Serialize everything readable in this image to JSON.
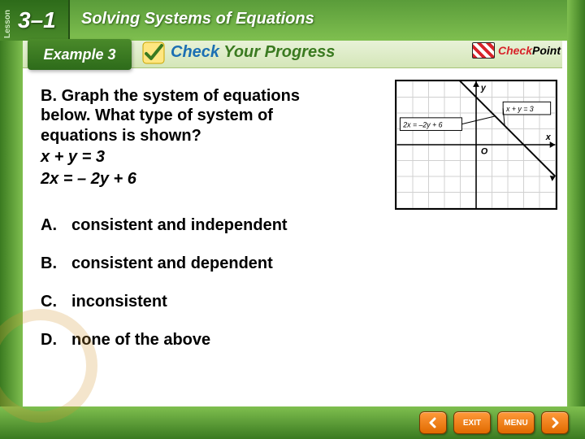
{
  "lesson": {
    "label": "Lesson",
    "number": "3–1"
  },
  "chapter_title": "Solving Systems of Equations",
  "example_badge": "Example 3",
  "cyp": {
    "word1": "Check",
    "word2": "Your Progress"
  },
  "checkpoint": {
    "word1": "Check",
    "word2": "Point"
  },
  "prompt": {
    "lead": "B.",
    "text": "Graph the system of equations below. What type of system of equations is shown?",
    "eq1": "x + y = 3",
    "eq2": "2x = – 2y + 6"
  },
  "choices": [
    {
      "letter": "A.",
      "text": "consistent and independent"
    },
    {
      "letter": "B.",
      "text": "consistent and dependent"
    },
    {
      "letter": "C.",
      "text": "inconsistent"
    },
    {
      "letter": "D.",
      "text": "none of the above"
    }
  ],
  "graph": {
    "type": "line",
    "xlim": [
      -5,
      5
    ],
    "ylim": [
      -4,
      4
    ],
    "xtick_step": 1,
    "ytick_step": 1,
    "grid_color": "#d0d0d0",
    "axis_color": "#000000",
    "background_color": "#ffffff",
    "line_color": "#000000",
    "line_width": 2,
    "origin_label": "O",
    "ylabel": "y",
    "xlabel": "x",
    "label_box1": "2x = –2y + 6",
    "label_box2": "x + y = 3",
    "data": {
      "slope": -1,
      "intercept": 3
    }
  },
  "nav": {
    "exit": "EXIT",
    "menu": "MENU"
  },
  "colors": {
    "green_dark": "#2d6b1a",
    "green_mid": "#4a8a2a",
    "green_light": "#7fbf4f",
    "orange": "#e06a00",
    "blue": "#1b6fb3",
    "red": "#d8232a"
  }
}
